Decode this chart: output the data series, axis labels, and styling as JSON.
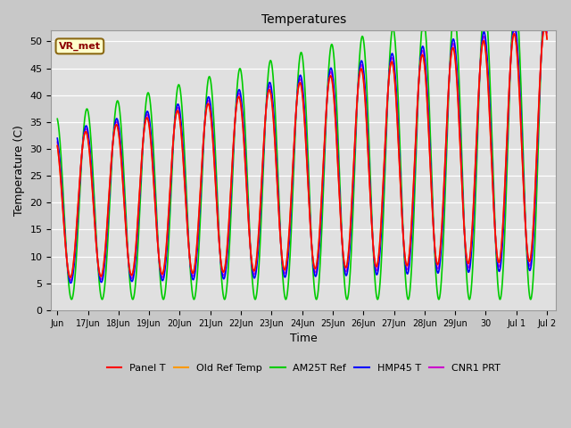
{
  "title": "Temperatures",
  "xlabel": "Time",
  "ylabel": "Temperature (C)",
  "ylim": [
    0,
    52
  ],
  "yticks": [
    0,
    5,
    10,
    15,
    20,
    25,
    30,
    35,
    40,
    45,
    50
  ],
  "fig_bg": "#c8c8c8",
  "plot_bg": "#e0e0e0",
  "annotation_text": "VR_met",
  "annotation_color": "#8b0000",
  "annotation_bg": "#ffffcc",
  "annotation_edge": "#8b6914",
  "series_colors": {
    "Panel T": "#ff0000",
    "Old Ref Temp": "#ff9900",
    "AM25T Ref": "#00cc00",
    "HMP45 T": "#0000ff",
    "CNR1 PRT": "#cc00cc"
  },
  "tick_labels": [
    "Jun",
    "17Jun",
    "18Jun",
    "19Jun",
    "20Jun",
    "21Jun",
    "22Jun",
    "23Jun",
    "24Jun",
    "25Jun",
    "26Jun",
    "27Jun",
    "28Jun",
    "29Jun",
    "30",
    "Jul 1",
    "Jul 2"
  ],
  "title_fontsize": 10,
  "lw": 1.2
}
